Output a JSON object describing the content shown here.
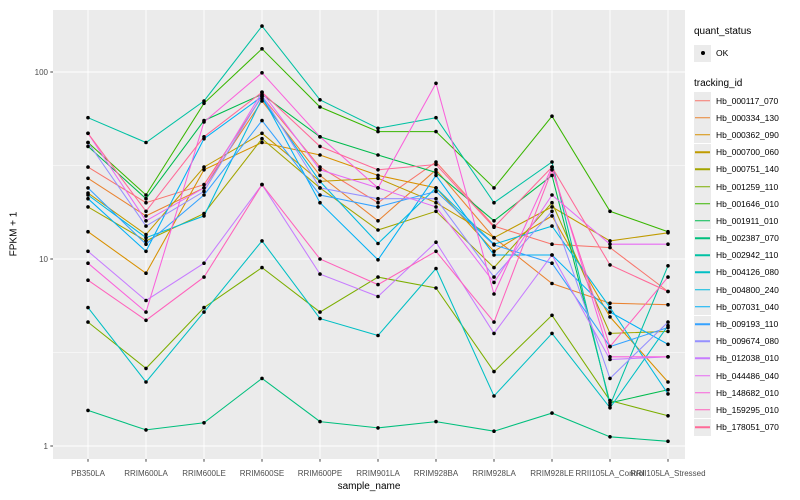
{
  "figure": {
    "y_axis": {
      "label": "FPKM + 1"
    },
    "x_axis": {
      "label": "sample_name"
    },
    "legend": {
      "quant_status_title": "quant_status",
      "quant_status_items": [
        {
          "label": "OK"
        }
      ],
      "tracking_title": "tracking_id"
    }
  },
  "chart_data": {
    "type": "line",
    "title": "",
    "xlabel": "sample_name",
    "ylabel": "FPKM + 1",
    "y_scale": "log10",
    "y_ticks": [
      1,
      10,
      100
    ],
    "minor_gridlines": [
      3.1623,
      31.623
    ],
    "ylim": [
      0.85,
      215
    ],
    "grid": true,
    "legend_position": "right",
    "point_color": "#000000",
    "panel_color": "#EBEBEB",
    "categories": [
      "PB350LA",
      "RRIM600LA",
      "RRIM600LE",
      "RRIM600SE",
      "RRIM600PE",
      "RRIM901LA",
      "RRIM928BA",
      "RRIM928LA",
      "RRIM928LE",
      "RRII105LA_Control",
      "RRII105LA_Stressed"
    ],
    "quant_status": {
      "title": "quant_status",
      "items": [
        "OK"
      ]
    },
    "series": [
      {
        "name": "Hb_000117_070",
        "color": "#F8766D",
        "values": [
          31,
          20,
          25,
          74,
          31,
          20,
          33,
          15,
          12,
          11.5,
          6.7
        ]
      },
      {
        "name": "Hb_000334_130",
        "color": "#EA8331",
        "values": [
          27,
          17,
          24,
          70,
          28,
          16,
          30,
          13,
          7.4,
          5.8,
          5.7
        ]
      },
      {
        "name": "Hb_000362_090",
        "color": "#D89000",
        "values": [
          14,
          8.4,
          30,
          42,
          36,
          28,
          24,
          11,
          17,
          4.9,
          2.2
        ]
      },
      {
        "name": "Hb_000700_060",
        "color": "#C09B00",
        "values": [
          22.5,
          13.5,
          31,
          47,
          26,
          27,
          20,
          13,
          19,
          12.5,
          13.8
        ]
      },
      {
        "name": "Hb_000751_140",
        "color": "#A3A500",
        "values": [
          19,
          12.5,
          17.5,
          44,
          24,
          14.3,
          18,
          9,
          20,
          4.0,
          4.1
        ]
      },
      {
        "name": "Hb_001259_110",
        "color": "#7CAE00",
        "values": [
          4.6,
          2.6,
          5.5,
          9.0,
          5.2,
          8.0,
          7.0,
          2.5,
          5.0,
          1.75,
          1.45
        ]
      },
      {
        "name": "Hb_001646_010",
        "color": "#39B600",
        "values": [
          42,
          22,
          68,
          133,
          65,
          48,
          48,
          24,
          58,
          18,
          14
        ]
      },
      {
        "name": "Hb_001911_010",
        "color": "#00BB4E",
        "values": [
          40,
          21,
          55,
          76,
          45,
          36,
          29,
          16,
          28,
          1.7,
          2.0
        ]
      },
      {
        "name": "Hb_002387_070",
        "color": "#00BF7D",
        "values": [
          1.55,
          1.22,
          1.33,
          2.3,
          1.35,
          1.25,
          1.35,
          1.2,
          1.5,
          1.12,
          1.06
        ]
      },
      {
        "name": "Hb_002942_110",
        "color": "#00C1A3",
        "values": [
          57,
          42,
          70,
          176,
          71,
          50,
          57,
          20,
          33,
          1.65,
          9.2
        ]
      },
      {
        "name": "Hb_004126_080",
        "color": "#00BFC4",
        "values": [
          5.5,
          2.2,
          5.2,
          12.5,
          4.8,
          3.9,
          8.9,
          1.85,
          4.0,
          1.6,
          4.4
        ]
      },
      {
        "name": "Hb_004800_240",
        "color": "#00BAE0",
        "values": [
          22,
          13,
          17,
          72,
          26,
          12.1,
          24,
          12,
          15,
          5.5,
          1.9
        ]
      },
      {
        "name": "Hb_007031_040",
        "color": "#00B0F6",
        "values": [
          21,
          11,
          44,
          74,
          20,
          9.9,
          28,
          10.5,
          10.5,
          5.2,
          3.5
        ]
      },
      {
        "name": "Hb_009193_110",
        "color": "#35A2FF",
        "values": [
          24,
          12,
          22,
          55,
          22,
          19,
          23,
          11.9,
          9.5,
          3.4,
          4.3
        ]
      },
      {
        "name": "Hb_009674_080",
        "color": "#9590FF",
        "values": [
          42,
          15,
          23,
          75,
          24,
          21,
          21,
          8,
          18,
          2.3,
          4.6
        ]
      },
      {
        "name": "Hb_012038_010",
        "color": "#C77CFF",
        "values": [
          11,
          6.0,
          9.5,
          25,
          8.3,
          6.3,
          12.3,
          4.0,
          10.5,
          2.9,
          3.0
        ]
      },
      {
        "name": "Hb_044486_040",
        "color": "#E76BF3",
        "values": [
          47,
          16,
          24,
          78,
          30,
          24,
          19,
          7.5,
          22,
          12,
          12
        ]
      },
      {
        "name": "Hb_148682_010",
        "color": "#FA62DB",
        "values": [
          9.5,
          5.2,
          54,
          99,
          45,
          24,
          87,
          6.5,
          31,
          3.0,
          3.0
        ]
      },
      {
        "name": "Hb_159295_010",
        "color": "#FF62BC",
        "values": [
          7.7,
          4.7,
          8.0,
          25,
          10,
          7.3,
          11,
          4.6,
          30,
          3.4,
          8.0
        ]
      },
      {
        "name": "Hb_178051_070",
        "color": "#FF6A98",
        "values": [
          47,
          18,
          45,
          78,
          40,
          30,
          32,
          14.8,
          31,
          9.3,
          6.7
        ]
      }
    ]
  }
}
